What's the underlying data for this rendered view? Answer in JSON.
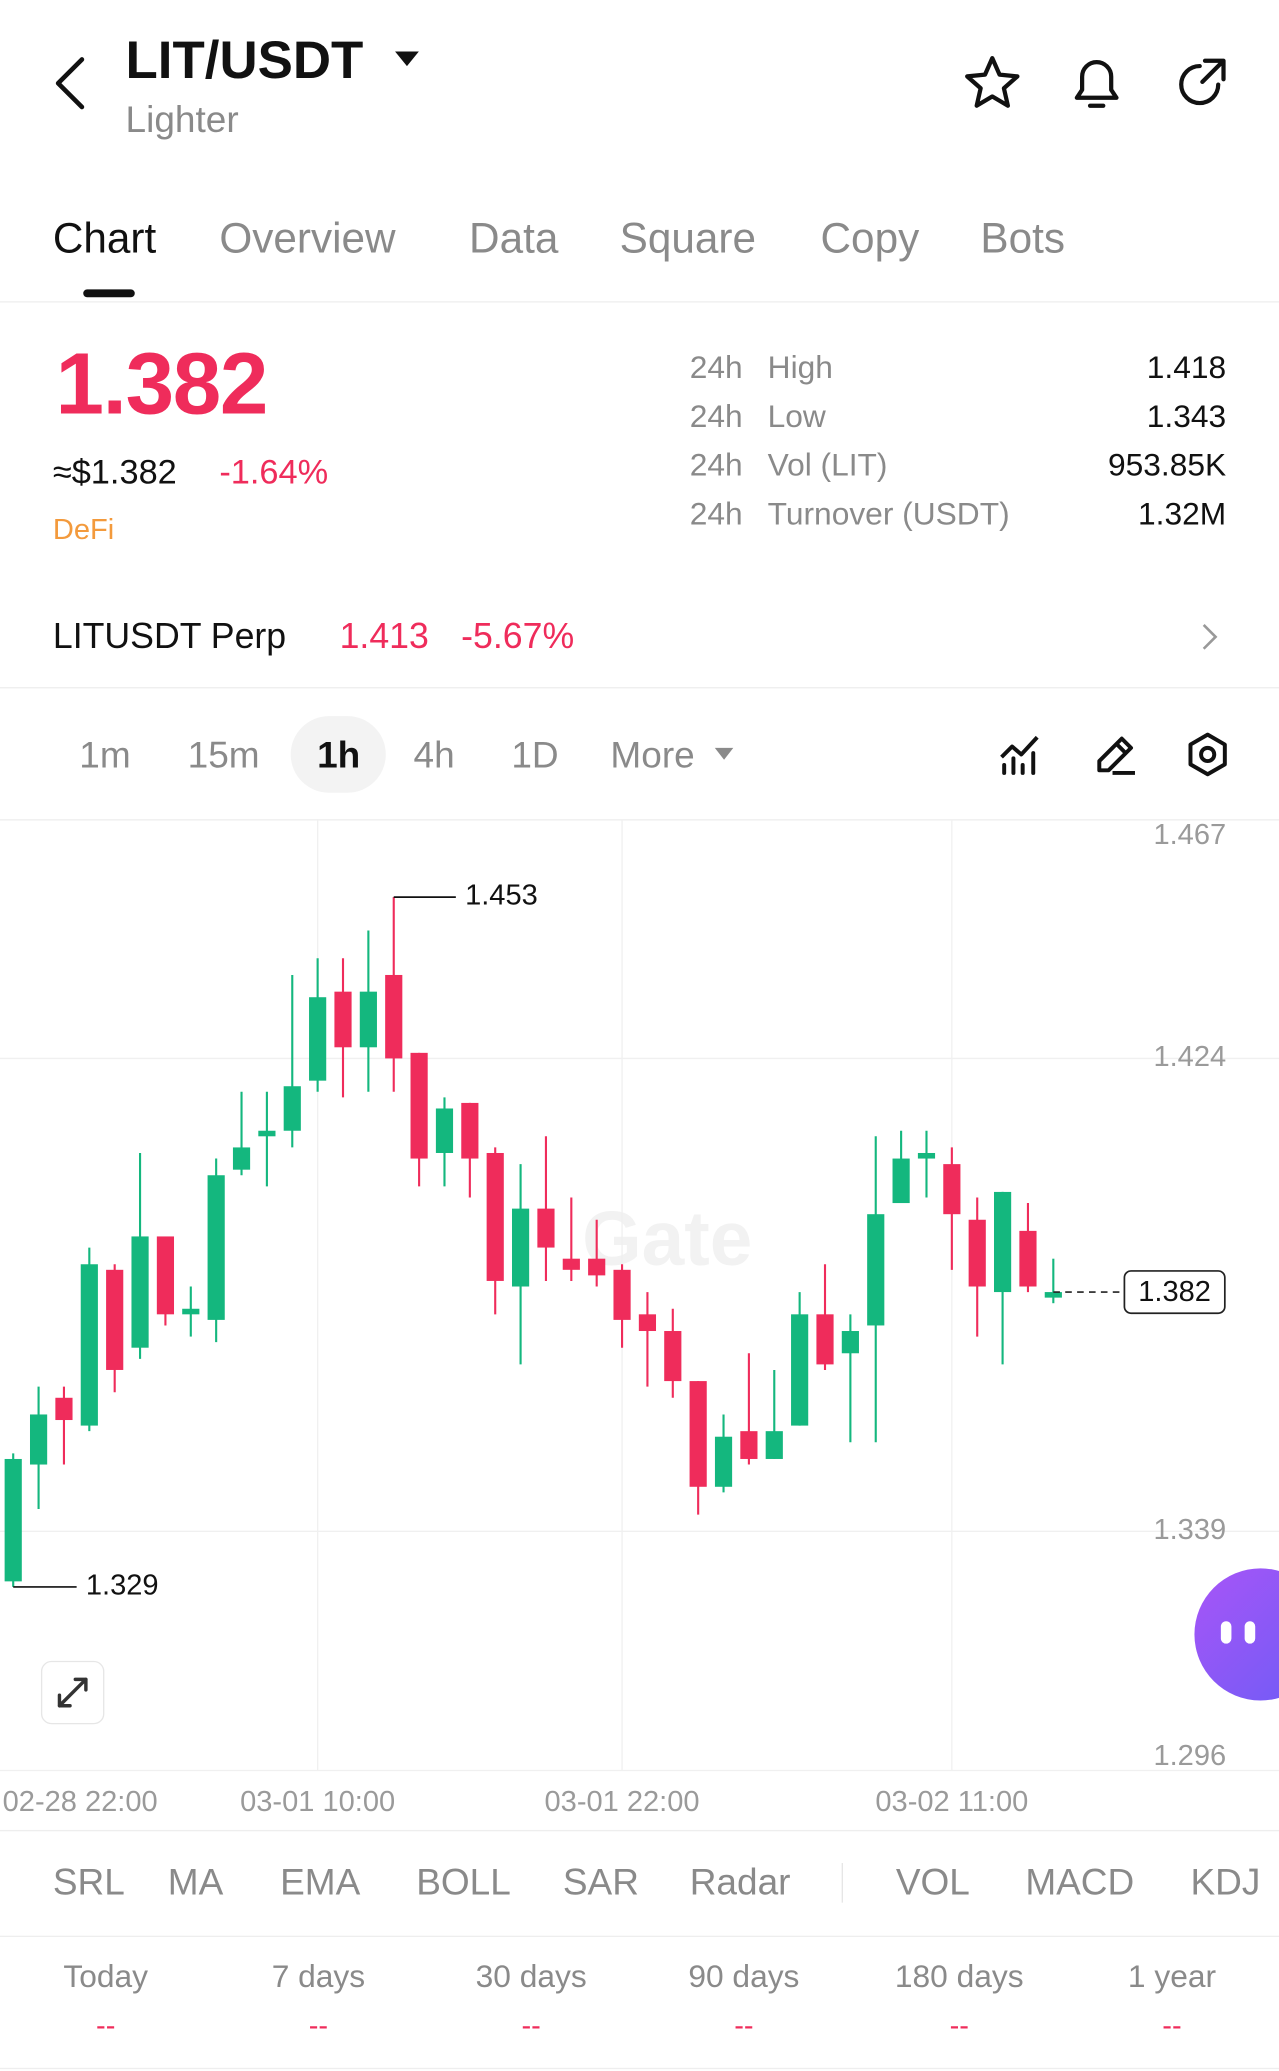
{
  "header": {
    "pair": "LIT/USDT",
    "name": "Lighter"
  },
  "tabs": [
    "Chart",
    "Overview",
    "Data",
    "Square",
    "Copy",
    "Bots"
  ],
  "ticker": {
    "price": "1.382",
    "usd_price": "≈$1.382",
    "change": "-1.64%",
    "tag": "DeFi"
  },
  "stats": [
    {
      "prefix": "24h",
      "label": "High",
      "value": "1.418"
    },
    {
      "prefix": "24h",
      "label": "Low",
      "value": "1.343"
    },
    {
      "prefix": "24h",
      "label": "Vol (LIT)",
      "value": "953.85K"
    },
    {
      "prefix": "24h",
      "label": "Turnover (USDT)",
      "value": "1.32M"
    }
  ],
  "perp": {
    "name": "LITUSDT Perp",
    "price": "1.413",
    "change": "-5.67%"
  },
  "intervals": [
    "1m",
    "15m",
    "1h",
    "4h",
    "1D",
    "More"
  ],
  "indicators": [
    "SRL",
    "MA",
    "EMA",
    "BOLL",
    "SAR",
    "Radar",
    "VOL",
    "MACD",
    "KDJ"
  ],
  "periods": [
    {
      "label": "Today",
      "value": "--"
    },
    {
      "label": "7 days",
      "value": "--"
    },
    {
      "label": "30 days",
      "value": "--"
    },
    {
      "label": "90 days",
      "value": "--"
    },
    {
      "label": "180 days",
      "value": "--"
    },
    {
      "label": "1 year",
      "value": "--"
    }
  ],
  "chart_data": {
    "type": "candlestick",
    "watermark": "Gate",
    "categories": [
      "02-28 22:00",
      null,
      null,
      null,
      null,
      null,
      null,
      null,
      null,
      null,
      null,
      null,
      "03-01 10:00",
      null,
      null,
      null,
      null,
      null,
      null,
      null,
      null,
      null,
      null,
      null,
      "03-01 22:00",
      null,
      null,
      null,
      null,
      null,
      null,
      null,
      null,
      null,
      null,
      null,
      null,
      "03-02 11:00",
      null,
      null,
      null,
      null
    ],
    "open": [
      1.33,
      1.351,
      1.363,
      1.358,
      1.386,
      1.372,
      1.392,
      1.378,
      1.377,
      1.404,
      1.41,
      1.411,
      1.42,
      1.436,
      1.426,
      1.439,
      1.425,
      1.407,
      1.416,
      1.407,
      1.383,
      1.397,
      1.388,
      1.388,
      1.386,
      1.378,
      1.375,
      1.366,
      1.347,
      1.357,
      1.352,
      1.358,
      1.378,
      1.371,
      1.376,
      1.398,
      1.406,
      1.405,
      1.395,
      1.382,
      1.393,
      1.381
    ],
    "high": [
      1.353,
      1.365,
      1.365,
      1.39,
      1.387,
      1.407,
      1.392,
      1.383,
      1.406,
      1.418,
      1.418,
      1.439,
      1.442,
      1.442,
      1.447,
      1.453,
      1.425,
      1.417,
      1.416,
      1.408,
      1.405,
      1.41,
      1.399,
      1.395,
      1.387,
      1.382,
      1.379,
      1.366,
      1.36,
      1.371,
      1.368,
      1.382,
      1.387,
      1.378,
      1.41,
      1.411,
      1.411,
      1.408,
      1.399,
      1.4,
      1.398,
      1.388
    ],
    "low": [
      1.329,
      1.343,
      1.351,
      1.357,
      1.364,
      1.37,
      1.376,
      1.374,
      1.373,
      1.403,
      1.401,
      1.408,
      1.418,
      1.417,
      1.418,
      1.418,
      1.401,
      1.401,
      1.399,
      1.378,
      1.369,
      1.384,
      1.384,
      1.383,
      1.372,
      1.365,
      1.363,
      1.342,
      1.346,
      1.351,
      1.352,
      1.358,
      1.368,
      1.355,
      1.355,
      1.398,
      1.399,
      1.386,
      1.374,
      1.369,
      1.382,
      1.38
    ],
    "close": [
      1.352,
      1.36,
      1.359,
      1.387,
      1.368,
      1.392,
      1.378,
      1.379,
      1.403,
      1.408,
      1.411,
      1.419,
      1.435,
      1.426,
      1.436,
      1.424,
      1.406,
      1.415,
      1.406,
      1.384,
      1.397,
      1.39,
      1.386,
      1.385,
      1.377,
      1.375,
      1.366,
      1.347,
      1.356,
      1.352,
      1.357,
      1.378,
      1.369,
      1.375,
      1.396,
      1.406,
      1.407,
      1.396,
      1.383,
      1.4,
      1.383,
      1.382
    ],
    "up_color": "#14b77e",
    "down_color": "#ef2c5b",
    "ylim": [
      1.296,
      1.467
    ],
    "yticks": [
      1.467,
      1.424,
      1.339,
      1.296
    ],
    "grid": true
  }
}
